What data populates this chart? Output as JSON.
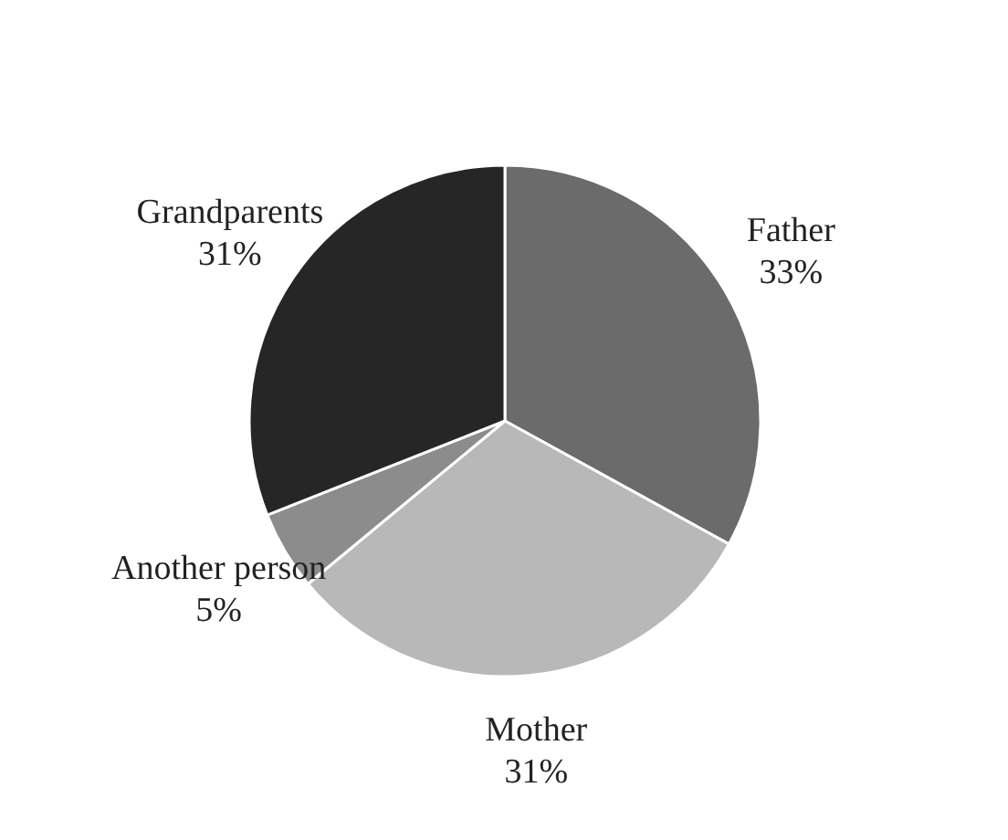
{
  "chart_data": {
    "type": "pie",
    "categories": [
      "Father",
      "Mother",
      "Another person",
      "Grandparents"
    ],
    "values": [
      33,
      31,
      5,
      31
    ],
    "colors": [
      "#6b6b6b",
      "#b8b8b8",
      "#8c8c8c",
      "#262626"
    ],
    "value_labels": [
      "33%",
      "31%",
      "5%",
      "31%"
    ]
  }
}
